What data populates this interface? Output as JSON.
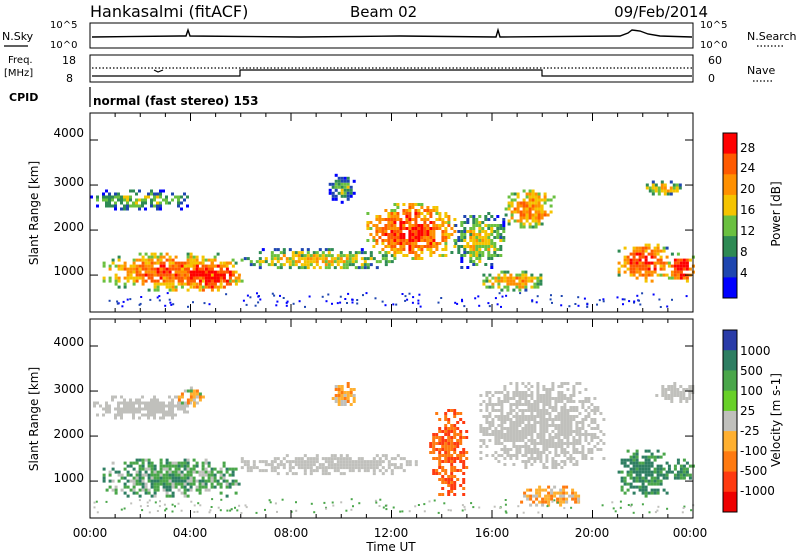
{
  "header": {
    "station": "Hankasalmi (fitACF)",
    "beam": "Beam 02",
    "date": "09/Feb/2014"
  },
  "panels": {
    "nsky_label": "N.Sky",
    "nsky_ticks": [
      "10^5",
      "10^0"
    ],
    "nsearch_label": "N.Search",
    "nsearch_ticks": [
      "10^5",
      "10^0"
    ],
    "freq_label_1": "Freq.",
    "freq_label_2": "[MHz]",
    "freq_ticks": [
      "18",
      "8"
    ],
    "nave_label": "Nave",
    "nave_ticks": [
      "60",
      "0"
    ],
    "cpid_label": "CPID",
    "cpid_text": "normal (fast stereo) 153"
  },
  "axes": {
    "x_ticks": [
      "00:00",
      "04:00",
      "08:00",
      "12:00",
      "16:00",
      "20:00",
      "00:00"
    ],
    "x_label": "Time UT",
    "y_ticks": [
      "4000",
      "3000",
      "2000",
      "1000"
    ],
    "y_label": "Slant Range [km]"
  },
  "colorbars": {
    "power_label": "Power [dB]",
    "power_ticks": [
      "28",
      "24",
      "20",
      "16",
      "12",
      "8",
      "4"
    ],
    "power_colors": [
      "#ff0000",
      "#ff5a00",
      "#ff9000",
      "#f5c400",
      "#6ac040",
      "#2e8a54",
      "#1e46b0",
      "#0000ff"
    ],
    "velocity_label": "Velocity [m s-1]",
    "velocity_ticks": [
      "1000",
      "500",
      "100",
      "25",
      "-25",
      "-100",
      "-500",
      "-1000"
    ],
    "velocity_colors": [
      "#2a3ca8",
      "#2e7e62",
      "#4aa64a",
      "#68d028",
      "#c0c0bc",
      "#ffb030",
      "#ff7a10",
      "#ff3a10",
      "#ee0000"
    ]
  },
  "chart_data": [
    {
      "type": "heatmap",
      "title": "Power",
      "xlabel": "Time UT",
      "ylabel": "Slant Range [km]",
      "xlim": [
        0,
        24
      ],
      "ylim": [
        180,
        4600
      ],
      "colorbar_label": "Power [dB]",
      "colorbar_range": [
        0,
        32
      ],
      "regions": [
        {
          "t": [
            0,
            4
          ],
          "r": [
            2500,
            2900
          ],
          "level": 14
        },
        {
          "t": [
            0.5,
            6
          ],
          "r": [
            700,
            1500
          ],
          "level": 24
        },
        {
          "t": [
            3.5,
            6
          ],
          "r": [
            700,
            1300
          ],
          "level": 30
        },
        {
          "t": [
            6,
            12
          ],
          "r": [
            1150,
            1600
          ],
          "level": 17
        },
        {
          "t": [
            9.5,
            10.5
          ],
          "r": [
            2650,
            3250
          ],
          "level": 12
        },
        {
          "t": [
            11,
            14.5
          ],
          "r": [
            1400,
            2600
          ],
          "level": 26
        },
        {
          "t": [
            14.5,
            16.5
          ],
          "r": [
            1200,
            2400
          ],
          "level": 16
        },
        {
          "t": [
            15.5,
            18
          ],
          "r": [
            700,
            1100
          ],
          "level": 20
        },
        {
          "t": [
            16.5,
            18.5
          ],
          "r": [
            2100,
            2900
          ],
          "level": 22
        },
        {
          "t": [
            21,
            23
          ],
          "r": [
            900,
            1700
          ],
          "level": 26
        },
        {
          "t": [
            22,
            23.5
          ],
          "r": [
            2800,
            3100
          ],
          "level": 18
        },
        {
          "t": [
            23,
            24
          ],
          "r": [
            900,
            1500
          ],
          "level": 28
        }
      ]
    },
    {
      "type": "heatmap",
      "title": "Velocity",
      "xlabel": "Time UT",
      "ylabel": "Slant Range [km]",
      "xlim": [
        0,
        24
      ],
      "ylim": [
        180,
        4600
      ],
      "colorbar_label": "Velocity [m s-1]",
      "colorbar_ticks": [
        1000,
        500,
        100,
        25,
        -25,
        -100,
        -500,
        -1000
      ],
      "regions": [
        {
          "t": [
            0,
            4
          ],
          "r": [
            2400,
            2900
          ],
          "value": 0
        },
        {
          "t": [
            0.5,
            6
          ],
          "r": [
            700,
            1500
          ],
          "value": 200
        },
        {
          "t": [
            3.5,
            4.5
          ],
          "r": [
            2700,
            3100
          ],
          "value": -150
        },
        {
          "t": [
            6,
            13
          ],
          "r": [
            1200,
            1600
          ],
          "value": 0
        },
        {
          "t": [
            9.5,
            10.5
          ],
          "r": [
            2700,
            3200
          ],
          "value": -200
        },
        {
          "t": [
            13.5,
            15
          ],
          "r": [
            700,
            2600
          ],
          "value": -700
        },
        {
          "t": [
            15.5,
            20.5
          ],
          "r": [
            1300,
            3200
          ],
          "value": 0
        },
        {
          "t": [
            17,
            19.5
          ],
          "r": [
            500,
            900
          ],
          "value": -200
        },
        {
          "t": [
            21,
            23
          ],
          "r": [
            700,
            1700
          ],
          "value": 400
        },
        {
          "t": [
            22.5,
            24
          ],
          "r": [
            2800,
            3200
          ],
          "value": 0
        },
        {
          "t": [
            23,
            24
          ],
          "r": [
            1000,
            1500
          ],
          "value": 300
        }
      ]
    }
  ]
}
